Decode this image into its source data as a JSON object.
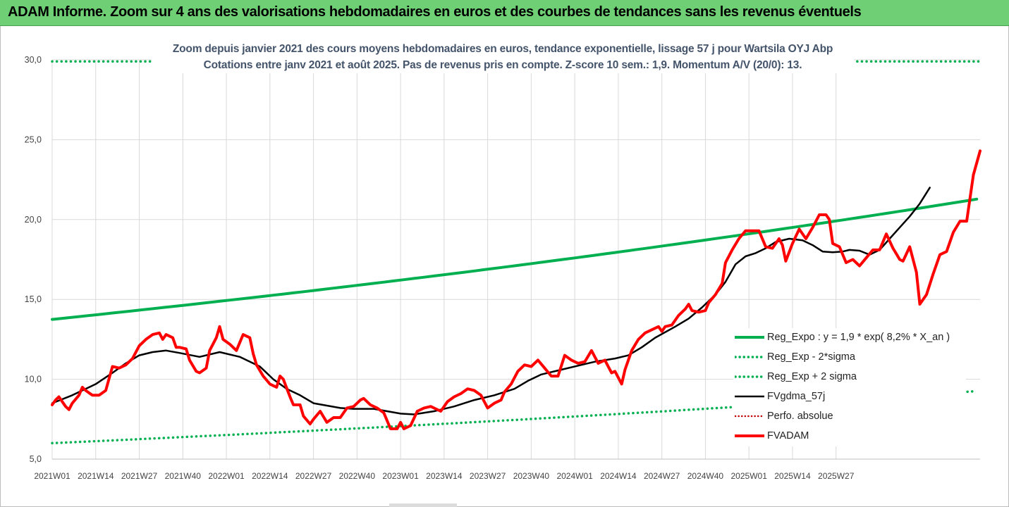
{
  "banner": {
    "title": "ADAM Informe. Zoom sur 4 ans des valorisations hebdomadaires en euros et des courbes de tendances sans les revenus éventuels"
  },
  "chart_data": {
    "type": "line",
    "title": "Zoom depuis janvier 2021 des cours moyens hebdomadaires en euros, tendance exponentielle, lissage 57 j pour Wartsila OYJ Abp",
    "subtitle": "Cotations entre janv 2021 et août 2025. Pas de revenus pris en compte. Z-score 10 sem.: 1,9. Momentum A/V (20/0): 13.",
    "ylim": [
      5,
      30
    ],
    "yticks": [
      "5,0",
      "10,0",
      "15,0",
      "20,0",
      "25,0",
      "30,0"
    ],
    "xticks": [
      "2021W01",
      "2021W14",
      "2021W27",
      "2021W40",
      "2022W01",
      "2022W14",
      "2022W27",
      "2022W40",
      "2023W01",
      "2023W14",
      "2023W27",
      "2023W40",
      "2024W01",
      "2024W14",
      "2024W27",
      "2024W40",
      "2025W01",
      "2025W14",
      "2025W27"
    ],
    "x_start_week_index": 0,
    "x_end_week_index": 240,
    "weeks_per_tick": 13,
    "grid": true,
    "legend_position": "right",
    "series": [
      {
        "name": "Reg_Expo : y = 1,9 * exp( 8,2% *  X_an )",
        "color": "#00b050",
        "style": "solid",
        "points": [
          [
            0,
            13.75
          ],
          [
            240,
            20.1
          ]
        ]
      },
      {
        "name": "Reg_Exp - 2*sigma",
        "color": "#00b050",
        "style": "dotted",
        "points": [
          [
            0,
            6.0
          ],
          [
            240,
            8.75
          ]
        ]
      },
      {
        "name": "Reg_Exp + 2 sigma",
        "color": "#00b050",
        "style": "dotted",
        "points": [
          [
            0,
            29.9
          ],
          [
            240,
            29.9
          ]
        ]
      },
      {
        "name": "FVgdma_57j",
        "color": "#000000",
        "style": "solid",
        "points": [
          [
            0,
            8.5
          ],
          [
            6,
            9.0
          ],
          [
            13,
            9.7
          ],
          [
            18,
            10.4
          ],
          [
            22,
            11.0
          ],
          [
            26,
            11.5
          ],
          [
            30,
            11.7
          ],
          [
            34,
            11.8
          ],
          [
            38,
            11.65
          ],
          [
            44,
            11.4
          ],
          [
            50,
            11.7
          ],
          [
            56,
            11.4
          ],
          [
            62,
            10.8
          ],
          [
            66,
            10.0
          ],
          [
            70,
            9.4
          ],
          [
            74,
            9.0
          ],
          [
            78,
            8.5
          ],
          [
            82,
            8.35
          ],
          [
            86,
            8.2
          ],
          [
            90,
            8.15
          ],
          [
            96,
            8.15
          ],
          [
            100,
            8.0
          ],
          [
            104,
            7.85
          ],
          [
            108,
            7.8
          ],
          [
            114,
            8.0
          ],
          [
            120,
            8.3
          ],
          [
            126,
            8.7
          ],
          [
            132,
            9.0
          ],
          [
            138,
            9.4
          ],
          [
            142,
            9.9
          ],
          [
            146,
            10.3
          ],
          [
            152,
            10.6
          ],
          [
            158,
            10.9
          ],
          [
            162,
            11.1
          ],
          [
            168,
            11.3
          ],
          [
            172,
            11.5
          ],
          [
            176,
            12.0
          ],
          [
            180,
            12.6
          ],
          [
            186,
            13.3
          ],
          [
            190,
            13.8
          ],
          [
            194,
            14.5
          ],
          [
            198,
            15.3
          ],
          [
            201,
            16.1
          ],
          [
            204,
            17.2
          ],
          [
            207,
            17.7
          ],
          [
            210,
            17.9
          ],
          [
            213,
            18.2
          ],
          [
            216,
            18.6
          ],
          [
            220,
            18.8
          ],
          [
            224,
            18.7
          ],
          [
            227,
            18.4
          ],
          [
            230,
            18.0
          ],
          [
            233,
            17.95
          ],
          [
            236,
            18.0
          ],
          [
            238,
            18.1
          ],
          [
            241,
            18.05
          ],
          [
            244,
            17.8
          ],
          [
            247,
            18.1
          ],
          [
            250,
            18.8
          ],
          [
            253,
            19.5
          ],
          [
            256,
            20.2
          ],
          [
            259,
            21.0
          ],
          [
            262,
            22.0
          ]
        ]
      },
      {
        "name": "Perfo. absolue",
        "color": "#c00000",
        "style": "dotted",
        "points": []
      },
      {
        "name": "FVADAM",
        "color": "#ff0000",
        "style": "solid",
        "points": [
          [
            0,
            8.4
          ],
          [
            1,
            8.7
          ],
          [
            2,
            8.9
          ],
          [
            4,
            8.3
          ],
          [
            5,
            8.1
          ],
          [
            6,
            8.5
          ],
          [
            8,
            9.0
          ],
          [
            9,
            9.5
          ],
          [
            10,
            9.3
          ],
          [
            12,
            9.0
          ],
          [
            14,
            9.0
          ],
          [
            16,
            9.3
          ],
          [
            18,
            10.8
          ],
          [
            20,
            10.7
          ],
          [
            22,
            10.9
          ],
          [
            24,
            11.3
          ],
          [
            26,
            12.1
          ],
          [
            28,
            12.5
          ],
          [
            30,
            12.8
          ],
          [
            32,
            12.9
          ],
          [
            33,
            12.5
          ],
          [
            34,
            12.8
          ],
          [
            36,
            12.6
          ],
          [
            37,
            12.0
          ],
          [
            38,
            12.0
          ],
          [
            40,
            11.9
          ],
          [
            41,
            11.2
          ],
          [
            43,
            10.5
          ],
          [
            44,
            10.4
          ],
          [
            46,
            10.7
          ],
          [
            47,
            11.8
          ],
          [
            49,
            12.6
          ],
          [
            50,
            13.3
          ],
          [
            51,
            12.5
          ],
          [
            53,
            12.2
          ],
          [
            55,
            11.8
          ],
          [
            57,
            12.8
          ],
          [
            59,
            12.6
          ],
          [
            60,
            11.6
          ],
          [
            61,
            10.9
          ],
          [
            63,
            10.2
          ],
          [
            65,
            9.7
          ],
          [
            67,
            9.5
          ],
          [
            68,
            10.2
          ],
          [
            69,
            10.0
          ],
          [
            71,
            8.9
          ],
          [
            72,
            8.4
          ],
          [
            74,
            8.4
          ],
          [
            75,
            7.7
          ],
          [
            77,
            7.2
          ],
          [
            78,
            7.5
          ],
          [
            80,
            8.0
          ],
          [
            82,
            7.3
          ],
          [
            84,
            7.6
          ],
          [
            86,
            7.6
          ],
          [
            88,
            8.2
          ],
          [
            90,
            8.3
          ],
          [
            92,
            8.7
          ],
          [
            93,
            8.8
          ],
          [
            95,
            8.4
          ],
          [
            97,
            8.2
          ],
          [
            99,
            7.9
          ],
          [
            100,
            7.4
          ],
          [
            101,
            6.9
          ],
          [
            103,
            6.9
          ],
          [
            104,
            7.3
          ],
          [
            105,
            6.9
          ],
          [
            107,
            7.1
          ],
          [
            109,
            8.0
          ],
          [
            111,
            8.2
          ],
          [
            113,
            8.3
          ],
          [
            116,
            8.0
          ],
          [
            118,
            8.6
          ],
          [
            120,
            8.9
          ],
          [
            122,
            9.1
          ],
          [
            124,
            9.4
          ],
          [
            126,
            9.3
          ],
          [
            128,
            9.0
          ],
          [
            130,
            8.2
          ],
          [
            132,
            8.5
          ],
          [
            134,
            8.7
          ],
          [
            135,
            9.2
          ],
          [
            137,
            9.7
          ],
          [
            139,
            10.5
          ],
          [
            141,
            10.9
          ],
          [
            143,
            10.8
          ],
          [
            145,
            11.2
          ],
          [
            147,
            10.7
          ],
          [
            149,
            10.2
          ],
          [
            151,
            10.2
          ],
          [
            153,
            11.5
          ],
          [
            155,
            11.2
          ],
          [
            157,
            11.0
          ],
          [
            159,
            11.1
          ],
          [
            161,
            11.8
          ],
          [
            163,
            11.0
          ],
          [
            165,
            11.2
          ],
          [
            166,
            10.8
          ],
          [
            167,
            10.4
          ],
          [
            168,
            10.5
          ],
          [
            170,
            9.7
          ],
          [
            171,
            10.6
          ],
          [
            173,
            11.8
          ],
          [
            175,
            12.5
          ],
          [
            177,
            12.9
          ],
          [
            179,
            13.1
          ],
          [
            181,
            13.3
          ],
          [
            182,
            13.0
          ],
          [
            183,
            13.3
          ],
          [
            185,
            13.4
          ],
          [
            187,
            14.0
          ],
          [
            189,
            14.4
          ],
          [
            190,
            14.7
          ],
          [
            191,
            14.3
          ],
          [
            193,
            14.2
          ],
          [
            195,
            14.3
          ],
          [
            196,
            14.8
          ],
          [
            198,
            15.3
          ],
          [
            200,
            16.0
          ],
          [
            201,
            17.3
          ],
          [
            203,
            18.1
          ],
          [
            205,
            18.8
          ],
          [
            207,
            19.3
          ],
          [
            209,
            19.3
          ],
          [
            211,
            19.3
          ],
          [
            213,
            18.3
          ],
          [
            215,
            18.2
          ],
          [
            217,
            18.8
          ],
          [
            218,
            18.4
          ],
          [
            219,
            17.4
          ],
          [
            221,
            18.5
          ],
          [
            223,
            19.4
          ],
          [
            225,
            18.8
          ],
          [
            227,
            19.5
          ],
          [
            229,
            20.3
          ],
          [
            231,
            20.3
          ],
          [
            232,
            20.0
          ],
          [
            233,
            18.5
          ],
          [
            235,
            18.3
          ],
          [
            237,
            17.3
          ],
          [
            239,
            17.5
          ],
          [
            241,
            17.1
          ],
          [
            243,
            17.6
          ],
          [
            245,
            18.1
          ],
          [
            247,
            18.1
          ],
          [
            249,
            19.1
          ],
          [
            251,
            18.2
          ],
          [
            253,
            17.5
          ],
          [
            254,
            17.4
          ],
          [
            256,
            18.3
          ],
          [
            258,
            16.7
          ],
          [
            259,
            14.7
          ],
          [
            261,
            15.3
          ],
          [
            263,
            16.6
          ],
          [
            265,
            17.8
          ],
          [
            267,
            18.0
          ],
          [
            269,
            19.2
          ],
          [
            271,
            19.9
          ],
          [
            273,
            19.9
          ],
          [
            275,
            22.8
          ],
          [
            277,
            24.3
          ]
        ]
      }
    ]
  }
}
